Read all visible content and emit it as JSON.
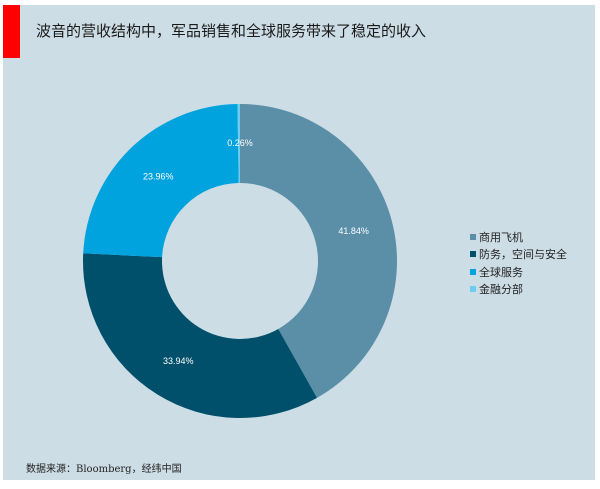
{
  "title": "波音的营收结构中，军品销售和全球服务带来了稳定的收入",
  "source": "数据来源：Bloomberg，经纬中国",
  "chart_data": {
    "type": "pie",
    "donut": true,
    "start": "12 o'clock, clockwise",
    "legend_position": "right",
    "series": [
      {
        "name": "商用飞机",
        "value": 41.84,
        "label": "41.84%",
        "color": "#5a8fa7"
      },
      {
        "name": "防务，空间与安全",
        "value": 33.94,
        "label": "33.94%",
        "color": "#004f6b"
      },
      {
        "name": "全球服务",
        "value": 23.96,
        "label": "23.96%",
        "color": "#00a3de"
      },
      {
        "name": "金融分部",
        "value": 0.26,
        "label": "0.26%",
        "color": "#6ccdf0"
      }
    ]
  }
}
